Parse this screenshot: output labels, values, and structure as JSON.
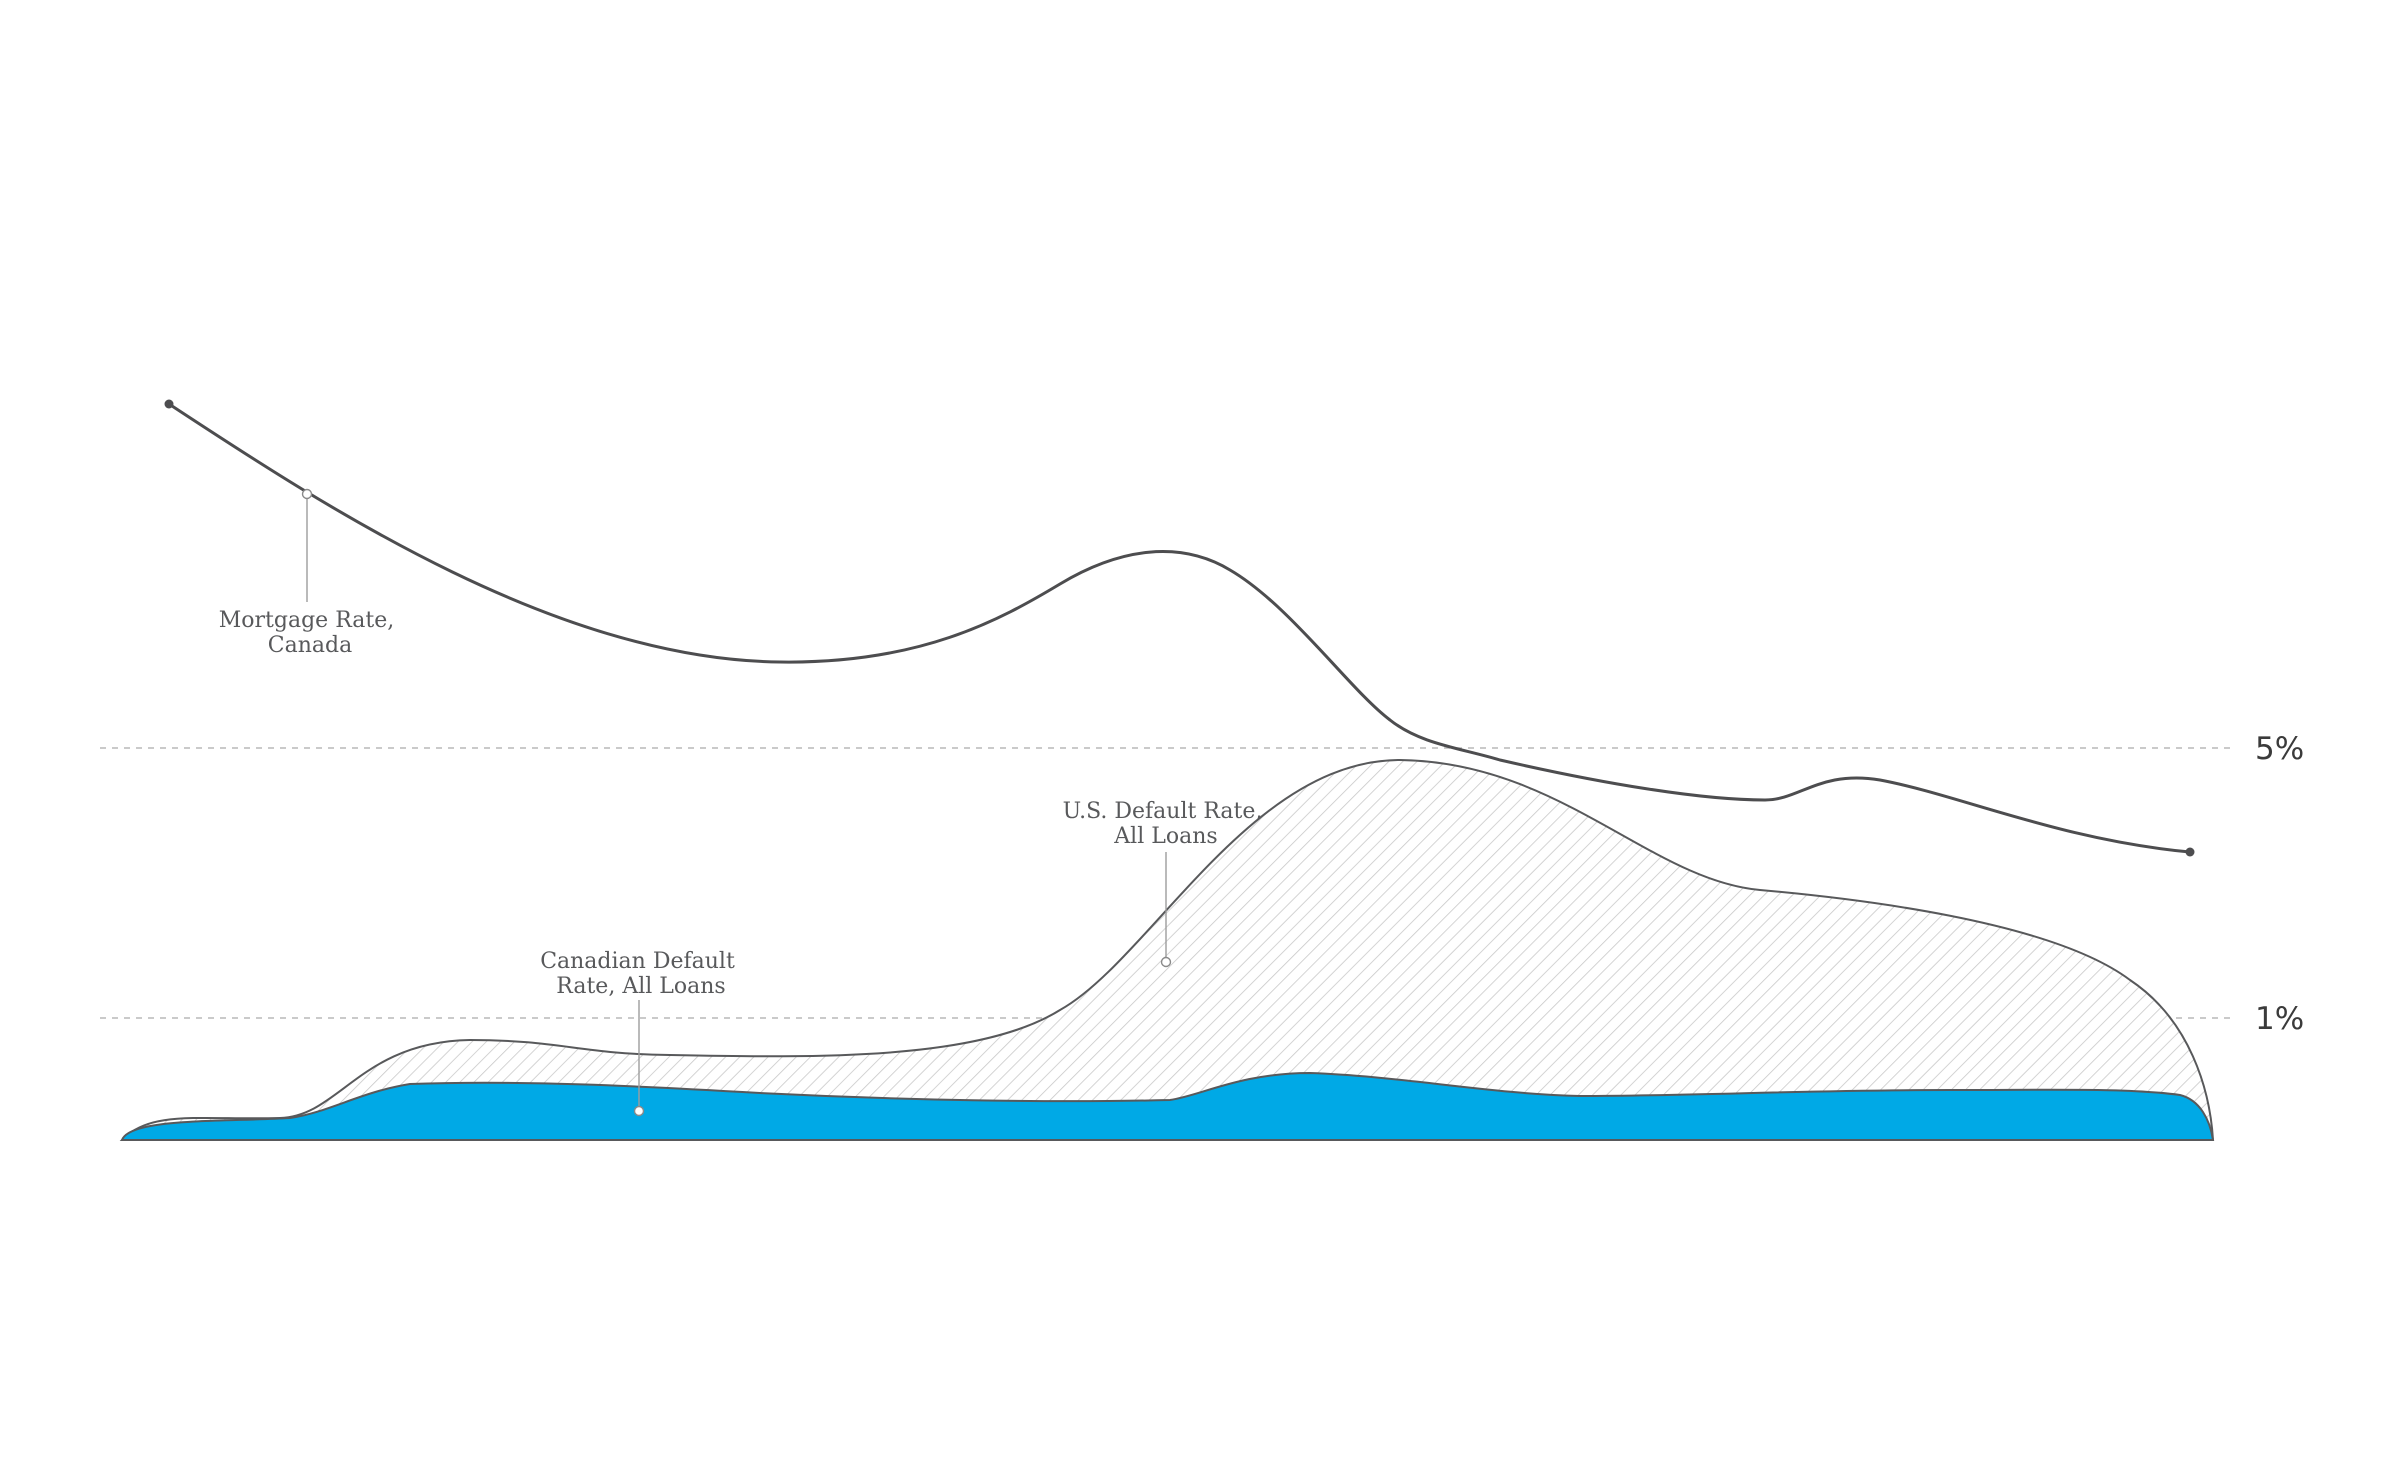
{
  "chart_data": {
    "type": "line",
    "title": "",
    "xlabel": "",
    "ylabel": "",
    "grid": "dashed lines at 1% and 5% only",
    "y_ticks": [
      {
        "value": 1,
        "label": "1%"
      },
      {
        "value": 5,
        "label": "5%"
      }
    ],
    "x": [
      0,
      0.1,
      0.2,
      0.3,
      0.4,
      0.5,
      0.6,
      0.7,
      0.8,
      0.9,
      1.0
    ],
    "series": [
      {
        "key": "mortgage",
        "name": "Mortgage Rate, Canada",
        "label_lines": [
          "Mortgage Rate,",
          "Canada"
        ],
        "style": "line",
        "color": "#4d4d4f",
        "values": [
          10.1,
          8.8,
          7.8,
          7.2,
          7.4,
          8.0,
          6.8,
          5.0,
          4.6,
          4.7,
          3.8
        ]
      },
      {
        "key": "us_default",
        "name": "U.S. Default Rate, All Loans",
        "label_lines": [
          "U.S. Default Rate,",
          "All Loans"
        ],
        "style": "hatched area",
        "color": "#58595b",
        "values": [
          0.1,
          0.7,
          1.0,
          0.95,
          1.0,
          2.0,
          4.7,
          4.0,
          3.2,
          2.9,
          0.0
        ]
      },
      {
        "key": "ca_default",
        "name": "Canadian Default Rate, All Loans",
        "label_lines": [
          "Canadian Default",
          "Rate, All Loans"
        ],
        "style": "filled area",
        "color": "#00a9e6",
        "values": [
          0.1,
          0.35,
          0.5,
          0.45,
          0.38,
          0.33,
          0.4,
          0.35,
          0.32,
          0.33,
          0.0
        ]
      }
    ]
  }
}
